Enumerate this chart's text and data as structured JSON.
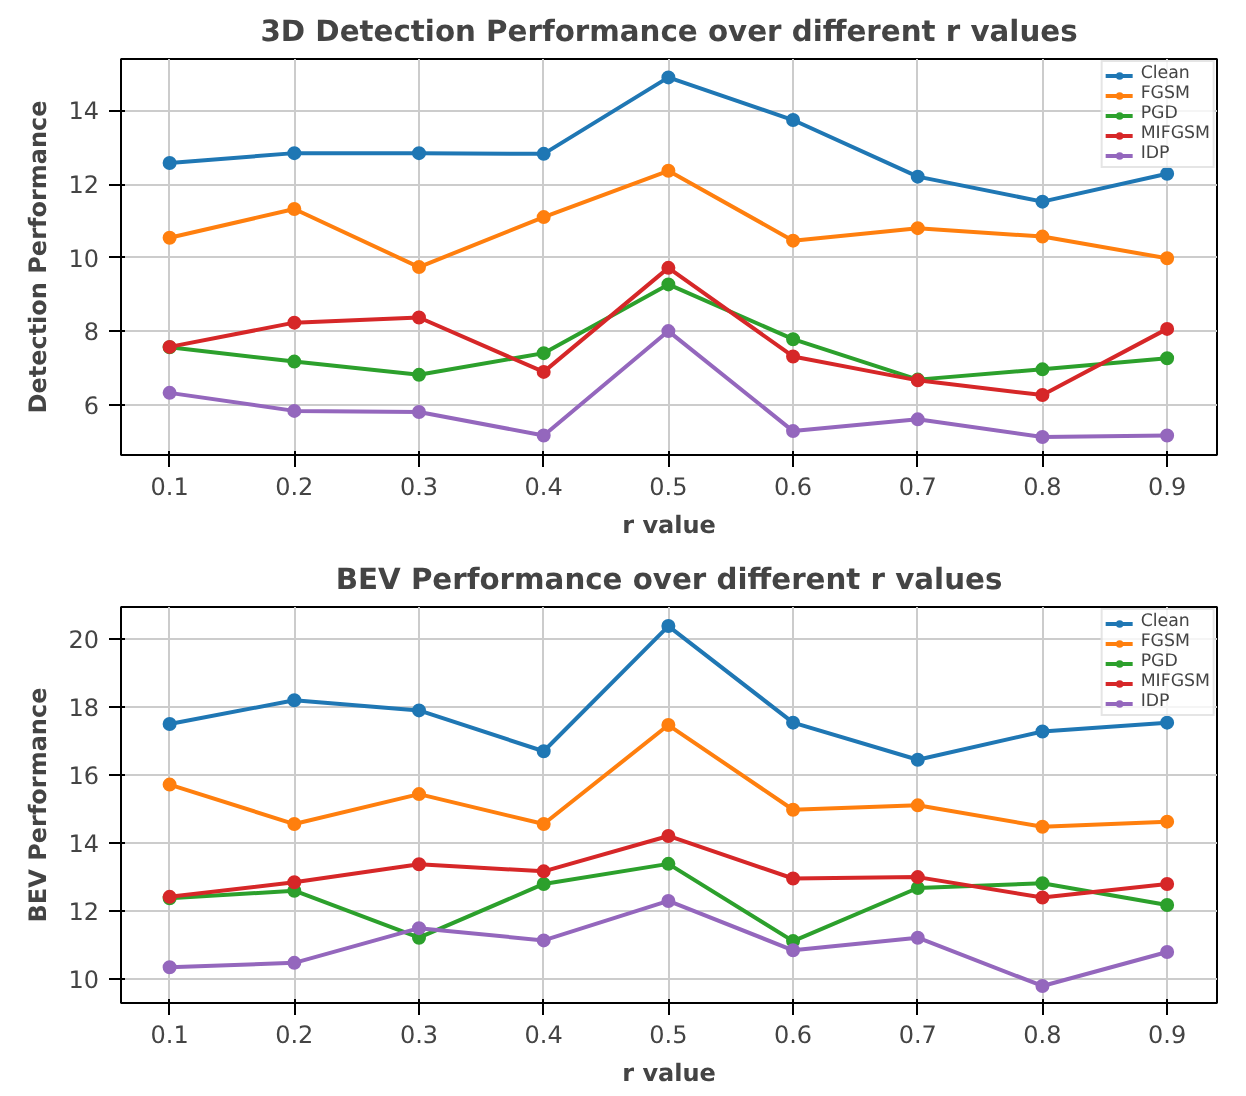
{
  "chart_data": [
    {
      "type": "line",
      "title": "3D Detection Performance over different r values",
      "xlabel": "r value",
      "ylabel": "Detection Performance",
      "x": [
        0.1,
        0.2,
        0.3,
        0.4,
        0.5,
        0.6,
        0.7,
        0.8,
        0.9
      ],
      "xlim": [
        0.061,
        0.94
      ],
      "xticks": [
        0.1,
        0.2,
        0.3,
        0.4,
        0.5,
        0.6,
        0.7,
        0.8,
        0.9
      ],
      "ylim": [
        4.63,
        15.4
      ],
      "yticks": [
        6,
        8,
        10,
        12,
        14
      ],
      "grid": true,
      "legend": "top right",
      "marker": "circle",
      "line_style": "solid",
      "series": [
        {
          "name": "Clean",
          "color": "#1f77b4",
          "values": [
            12.57,
            12.84,
            12.84,
            12.82,
            14.9,
            13.74,
            12.2,
            11.52,
            12.28
          ]
        },
        {
          "name": "FGSM",
          "color": "#ff7f0e",
          "values": [
            10.54,
            11.32,
            9.74,
            11.1,
            12.36,
            10.46,
            10.8,
            10.57,
            9.98
          ]
        },
        {
          "name": "PGD",
          "color": "#2ca02c",
          "values": [
            7.56,
            7.17,
            6.81,
            7.4,
            9.27,
            7.78,
            6.68,
            6.96,
            7.26
          ]
        },
        {
          "name": "MIFGSM",
          "color": "#d62728",
          "values": [
            7.57,
            8.23,
            8.37,
            6.89,
            9.72,
            7.31,
            6.66,
            6.26,
            8.06
          ]
        },
        {
          "name": "IDP",
          "color": "#9467bd",
          "values": [
            6.32,
            5.83,
            5.8,
            5.16,
            8.0,
            5.28,
            5.6,
            5.12,
            5.16
          ]
        }
      ]
    },
    {
      "type": "line",
      "title": "BEV Performance over different r values",
      "xlabel": "r value",
      "ylabel": "BEV Performance",
      "x": [
        0.1,
        0.2,
        0.3,
        0.4,
        0.5,
        0.6,
        0.7,
        0.8,
        0.9
      ],
      "xlim": [
        0.061,
        0.94
      ],
      "xticks": [
        0.1,
        0.2,
        0.3,
        0.4,
        0.5,
        0.6,
        0.7,
        0.8,
        0.9
      ],
      "ylim": [
        9.3,
        20.94
      ],
      "yticks": [
        10,
        12,
        14,
        16,
        18,
        20
      ],
      "grid": true,
      "legend": "top right",
      "marker": "circle",
      "line_style": "solid",
      "series": [
        {
          "name": "Clean",
          "color": "#1f77b4",
          "values": [
            17.5,
            18.2,
            17.9,
            16.7,
            20.38,
            17.54,
            16.45,
            17.28,
            17.54
          ]
        },
        {
          "name": "FGSM",
          "color": "#ff7f0e",
          "values": [
            15.72,
            14.56,
            15.44,
            14.56,
            17.47,
            14.98,
            15.11,
            14.48,
            14.63
          ]
        },
        {
          "name": "PGD",
          "color": "#2ca02c",
          "values": [
            12.38,
            12.6,
            11.22,
            12.8,
            13.39,
            11.12,
            12.68,
            12.82,
            12.18
          ]
        },
        {
          "name": "MIFGSM",
          "color": "#d62728",
          "values": [
            12.42,
            12.85,
            13.38,
            13.17,
            14.21,
            12.96,
            13.0,
            12.4,
            12.8
          ]
        },
        {
          "name": "IDP",
          "color": "#9467bd",
          "values": [
            10.35,
            10.48,
            11.5,
            11.14,
            12.3,
            10.85,
            11.22,
            9.8,
            10.8
          ]
        }
      ]
    }
  ]
}
